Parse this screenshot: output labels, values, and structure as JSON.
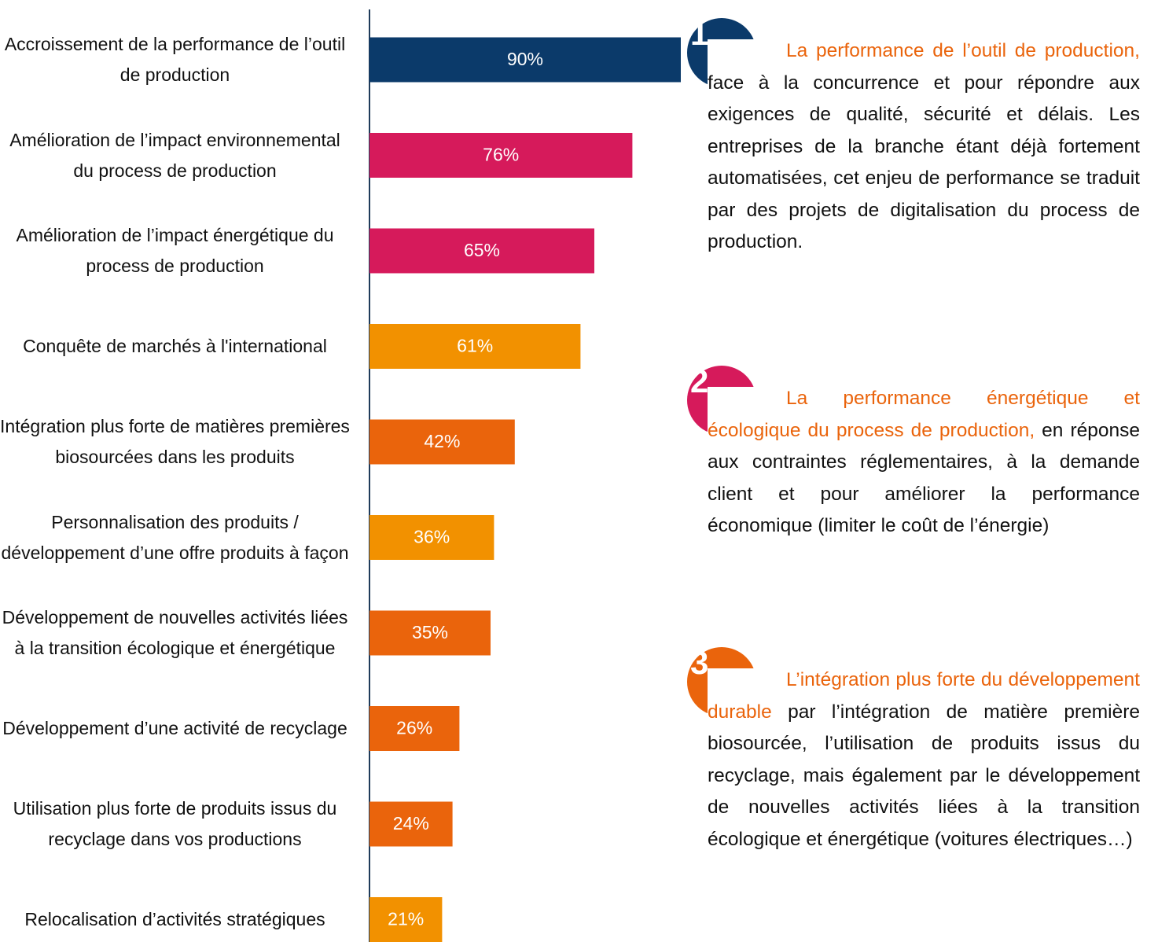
{
  "chart_data": {
    "type": "bar",
    "orientation": "horizontal",
    "categories": [
      "Accroissement de la performance de l’outil de production",
      "Amélioration de l’impact environnemental du process de production",
      "Amélioration de l’impact énergétique du process de production",
      "Conquête de marchés à l'international",
      "Intégration plus forte de matières premières biosourcées dans les produits",
      "Personnalisation des produits / développement d’une offre produits à façon",
      "Développement de nouvelles activités liées à la transition écologique et énergétique",
      "Développement d’une activité de recyclage",
      "Utilisation plus forte de produits issus du recyclage dans vos productions",
      "Relocalisation d’activités stratégiques"
    ],
    "values": [
      90,
      76,
      65,
      61,
      42,
      36,
      35,
      26,
      24,
      21
    ],
    "value_labels": [
      "90%",
      "76%",
      "65%",
      "61%",
      "42%",
      "36%",
      "35%",
      "26%",
      "24%",
      "21%"
    ],
    "colors": [
      "#0b3a6a",
      "#d61a5b",
      "#d61a5b",
      "#f29100",
      "#ea640c",
      "#f29100",
      "#ea640c",
      "#ea640c",
      "#ea640c",
      "#f29100"
    ],
    "xlim": [
      0,
      100
    ],
    "annotations": [
      {
        "number": "1",
        "color": "#0b3a6a",
        "highlight": "La performance de l’outil de production,",
        "text": "face à la concurrence et pour répondre aux exigences de qualité, sécurité et délais. Les entreprises de la branche étant déjà fortement automatisées, cet enjeu de performance se traduit par des projets de digitalisation du process de production."
      },
      {
        "number": "2",
        "color": "#d61a5b",
        "highlight": "La performance énergétique et écologique du process de production,",
        "text": "en réponse aux contraintes réglementaires, à la demande client et pour améliorer la performance économique (limiter le coût de l’énergie)"
      },
      {
        "number": "3",
        "color": "#ea640c",
        "highlight": "L’intégration plus forte du développement durable",
        "text": "par l’intégration de matière première biosourcée, l’utilisation de produits issus du recyclage, mais également par le développement de nouvelles activités liées à la transition écologique et énergétique (voitures électriques…)"
      }
    ]
  }
}
